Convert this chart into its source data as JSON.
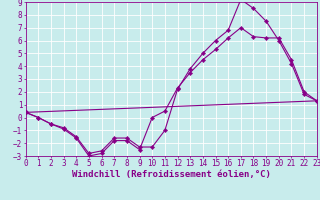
{
  "background_color": "#c8ecec",
  "grid_color": "#aadddd",
  "line_color": "#880088",
  "xlim": [
    0,
    23
  ],
  "ylim": [
    -3,
    9
  ],
  "xticks": [
    0,
    1,
    2,
    3,
    4,
    5,
    6,
    7,
    8,
    9,
    10,
    11,
    12,
    13,
    14,
    15,
    16,
    17,
    18,
    19,
    20,
    21,
    22,
    23
  ],
  "yticks": [
    -3,
    -2,
    -1,
    0,
    1,
    2,
    3,
    4,
    5,
    6,
    7,
    8,
    9
  ],
  "line1_x": [
    0,
    1,
    2,
    3,
    4,
    5,
    6,
    7,
    8,
    9,
    10,
    11,
    12,
    13,
    14,
    15,
    16,
    17,
    18,
    19,
    20,
    21,
    22,
    23
  ],
  "line1_y": [
    0.4,
    0.0,
    -0.5,
    -0.9,
    -1.6,
    -3.0,
    -2.8,
    -1.8,
    -1.8,
    -2.5,
    0.0,
    0.5,
    2.3,
    3.5,
    4.5,
    5.3,
    6.2,
    7.0,
    6.3,
    6.2,
    6.2,
    4.5,
    2.0,
    1.3
  ],
  "line2_x": [
    0,
    1,
    2,
    3,
    4,
    5,
    6,
    7,
    8,
    9,
    10,
    11,
    12,
    13,
    14,
    15,
    16,
    17,
    18,
    19,
    20,
    21,
    22,
    23
  ],
  "line2_y": [
    0.4,
    0.0,
    -0.5,
    -0.8,
    -1.5,
    -2.8,
    -2.6,
    -1.6,
    -1.6,
    -2.3,
    -2.3,
    -1.0,
    2.2,
    3.8,
    5.0,
    6.0,
    6.8,
    9.2,
    8.5,
    7.5,
    6.0,
    4.2,
    1.8,
    1.3
  ],
  "line3_x": [
    0,
    23
  ],
  "line3_y": [
    0.4,
    1.3
  ],
  "xlabel": "Windchill (Refroidissement éolien,°C)",
  "tick_fontsize": 5.5,
  "label_fontsize": 6.5,
  "linewidth": 0.8,
  "markersize": 2.2
}
